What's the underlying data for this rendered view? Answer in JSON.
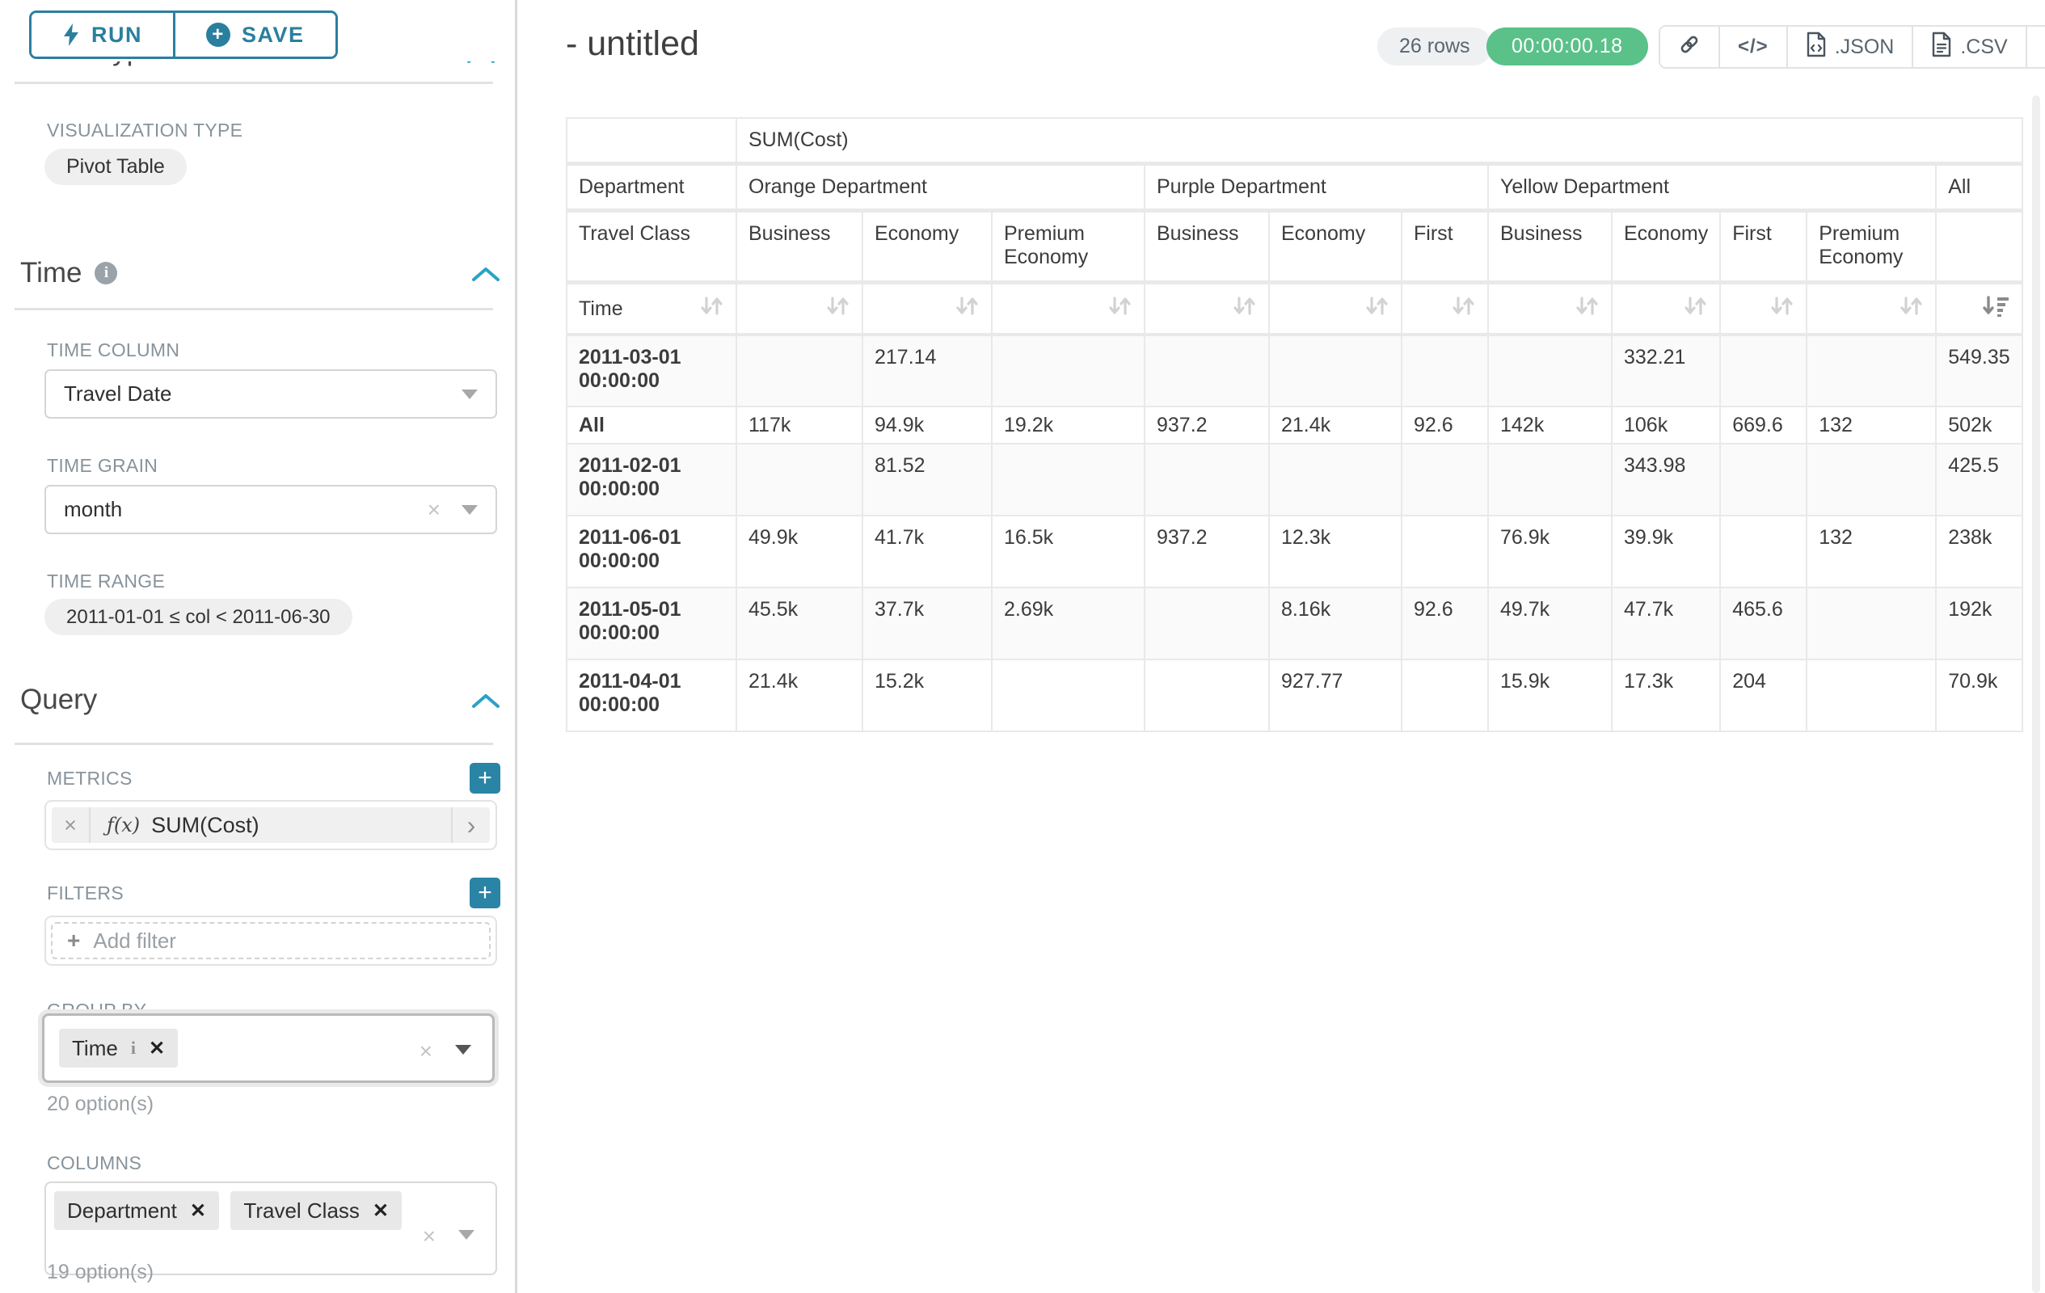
{
  "sidebar": {
    "run_button": "RUN",
    "save_button": "SAVE",
    "chart_type_section_title": "Chart Type",
    "visualization_type": {
      "label": "VISUALIZATION TYPE",
      "value": "Pivot Table"
    },
    "time_section": {
      "title": "Time",
      "time_column": {
        "label": "TIME COLUMN",
        "value": "Travel Date"
      },
      "time_grain": {
        "label": "TIME GRAIN",
        "value": "month"
      },
      "time_range": {
        "label": "TIME RANGE",
        "value": "2011-01-01 ≤ col < 2011-06-30"
      }
    },
    "query_section": {
      "title": "Query",
      "metrics": {
        "label": "METRICS",
        "fx": "ƒ(x)",
        "value": "SUM(Cost)"
      },
      "filters": {
        "label": "FILTERS",
        "placeholder": "Add filter"
      },
      "group_by": {
        "label": "GROUP BY",
        "items": [
          "Time"
        ],
        "hint": "20 option(s)"
      },
      "columns": {
        "label": "COLUMNS",
        "items": [
          "Department",
          "Travel Class"
        ],
        "hint": "19 option(s)"
      }
    }
  },
  "header": {
    "title": "- untitled",
    "row_count": "26 rows",
    "timer": "00:00:00.18",
    "export_json": ".JSON",
    "export_csv": ".CSV",
    "code_glyph": "</>"
  },
  "pivot": {
    "metric_label": "SUM(Cost)",
    "row2_corner": "Department",
    "row3_corner": "Travel Class",
    "row4_corner": "Time",
    "column_groups": [
      {
        "label": "Orange Department",
        "children": [
          "Business",
          "Economy",
          "Premium Economy"
        ]
      },
      {
        "label": "Purple Department",
        "children": [
          "Business",
          "Economy",
          "First"
        ]
      },
      {
        "label": "Yellow Department",
        "children": [
          "Business",
          "Economy",
          "First",
          "Premium Economy"
        ]
      },
      {
        "label": "All",
        "children": [
          ""
        ]
      }
    ],
    "rows": [
      {
        "label": "2011-03-01 00:00:00",
        "values": [
          "",
          "217.14",
          "",
          "",
          "",
          "",
          "",
          "332.21",
          "",
          "",
          "549.35"
        ]
      },
      {
        "label": "All",
        "values": [
          "117k",
          "94.9k",
          "19.2k",
          "937.2",
          "21.4k",
          "92.6",
          "142k",
          "106k",
          "669.6",
          "132",
          "502k"
        ]
      },
      {
        "label": "2011-02-01 00:00:00",
        "values": [
          "",
          "81.52",
          "",
          "",
          "",
          "",
          "",
          "343.98",
          "",
          "",
          "425.5"
        ]
      },
      {
        "label": "2011-06-01 00:00:00",
        "values": [
          "49.9k",
          "41.7k",
          "16.5k",
          "937.2",
          "12.3k",
          "",
          "76.9k",
          "39.9k",
          "",
          "132",
          "238k"
        ]
      },
      {
        "label": "2011-05-01 00:00:00",
        "values": [
          "45.5k",
          "37.7k",
          "2.69k",
          "",
          "8.16k",
          "92.6",
          "49.7k",
          "47.7k",
          "465.6",
          "",
          "192k"
        ]
      },
      {
        "label": "2011-04-01 00:00:00",
        "values": [
          "21.4k",
          "15.2k",
          "",
          "",
          "927.77",
          "",
          "15.9k",
          "17.3k",
          "204",
          "",
          "70.9k"
        ]
      }
    ]
  },
  "colors": {
    "accent_teal": "#2a7f9e",
    "chevron_teal": "#29a3c5",
    "timer_green": "#5ac189",
    "sort_inactive": "#d2d2d2",
    "sort_active": "#8b8b8b"
  }
}
